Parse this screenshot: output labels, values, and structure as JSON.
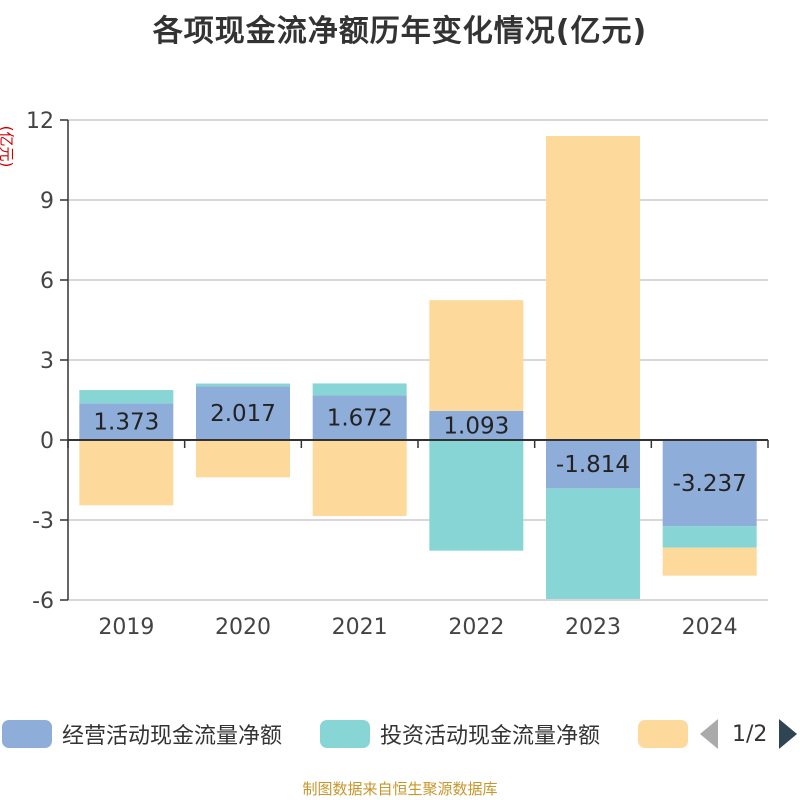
{
  "chart_data": {
    "type": "bar",
    "stacked": true,
    "title": "各项现金流净额历年变化情况(亿元)",
    "ylabel": "(亿元)",
    "categories": [
      "2019",
      "2020",
      "2021",
      "2022",
      "2023",
      "2024"
    ],
    "ylim": [
      -6,
      12
    ],
    "yticks": [
      12,
      9,
      6,
      3,
      0,
      -3,
      -6
    ],
    "grid": true,
    "series": [
      {
        "name": "经营活动现金流量净额",
        "color": "#8fadd9",
        "values": [
          1.373,
          2.017,
          1.672,
          1.093,
          -1.814,
          -3.237
        ],
        "show_labels": true
      },
      {
        "name": "投资活动现金流量净额",
        "color": "#88d5d6",
        "values": [
          0.5,
          0.1,
          0.45,
          -4.15,
          -4.15,
          -0.8
        ],
        "show_labels": false
      },
      {
        "name": "",
        "color": "#fdd99b",
        "values": [
          -2.45,
          -1.4,
          -2.85,
          4.15,
          11.4,
          -1.05
        ],
        "show_labels": false
      }
    ],
    "legend_position": "bottom"
  },
  "legend": {
    "page_indicator": "1/2"
  },
  "footer": {
    "source": "制图数据来自恒生聚源数据库"
  }
}
